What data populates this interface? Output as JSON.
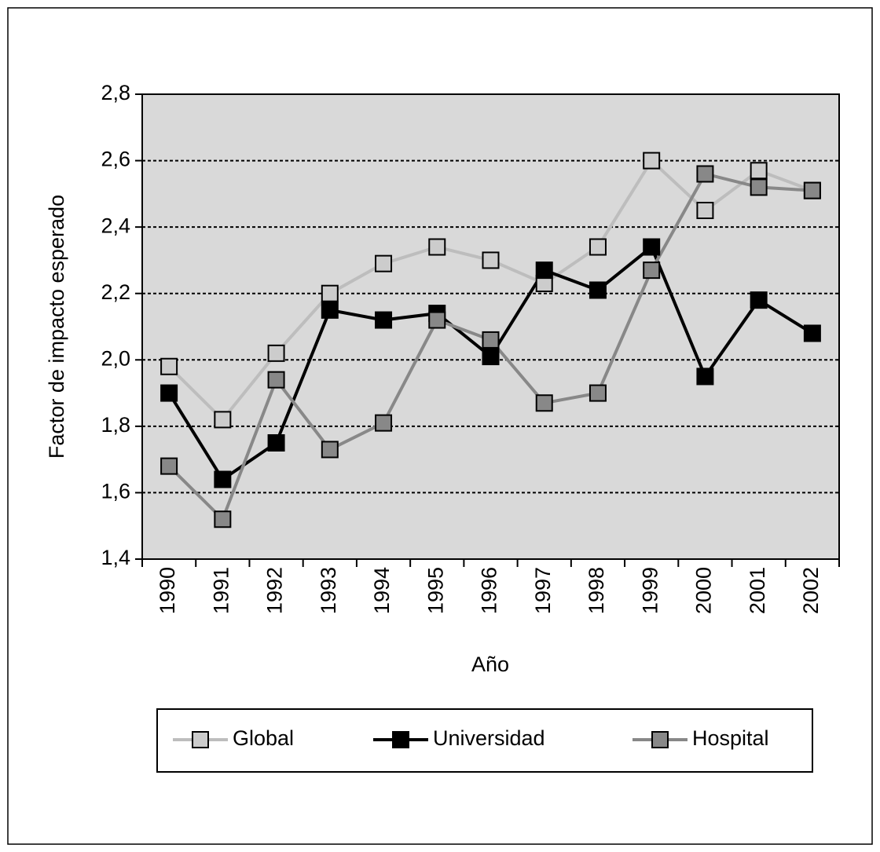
{
  "chart_data": {
    "type": "line",
    "categories": [
      "1990",
      "1991",
      "1992",
      "1993",
      "1994",
      "1995",
      "1996",
      "1997",
      "1998",
      "1999",
      "2000",
      "2001",
      "2002"
    ],
    "series": [
      {
        "name": "Global",
        "color": "#bdbdbd",
        "marker_color": "#cccccc",
        "values": [
          1.98,
          1.82,
          2.02,
          2.2,
          2.29,
          2.34,
          2.3,
          2.23,
          2.34,
          2.6,
          2.45,
          2.57,
          2.51
        ]
      },
      {
        "name": "Universidad",
        "color": "#000000",
        "marker_color": "#000000",
        "values": [
          1.9,
          1.64,
          1.75,
          2.15,
          2.12,
          2.14,
          2.01,
          2.27,
          2.21,
          2.34,
          1.95,
          2.18,
          2.08
        ]
      },
      {
        "name": "Hospital",
        "color": "#888888",
        "marker_color": "#888888",
        "values": [
          1.68,
          1.52,
          1.94,
          1.73,
          1.81,
          2.12,
          2.06,
          1.87,
          1.9,
          2.27,
          2.56,
          2.52,
          2.51
        ]
      }
    ],
    "ylim": [
      1.4,
      2.8
    ],
    "yticks": [
      {
        "value": 1.4,
        "label": "1,4"
      },
      {
        "value": 1.6,
        "label": "1,6"
      },
      {
        "value": 1.8,
        "label": "1,8"
      },
      {
        "value": 2.0,
        "label": "2,0"
      },
      {
        "value": 2.2,
        "label": "2,2"
      },
      {
        "value": 2.4,
        "label": "2,4"
      },
      {
        "value": 2.6,
        "label": "2,6"
      },
      {
        "value": 2.8,
        "label": "2,8"
      }
    ],
    "ylabel": "Factor de impacto esperado",
    "xlabel": "Año",
    "grid": true,
    "background": "#d9d9d9"
  }
}
